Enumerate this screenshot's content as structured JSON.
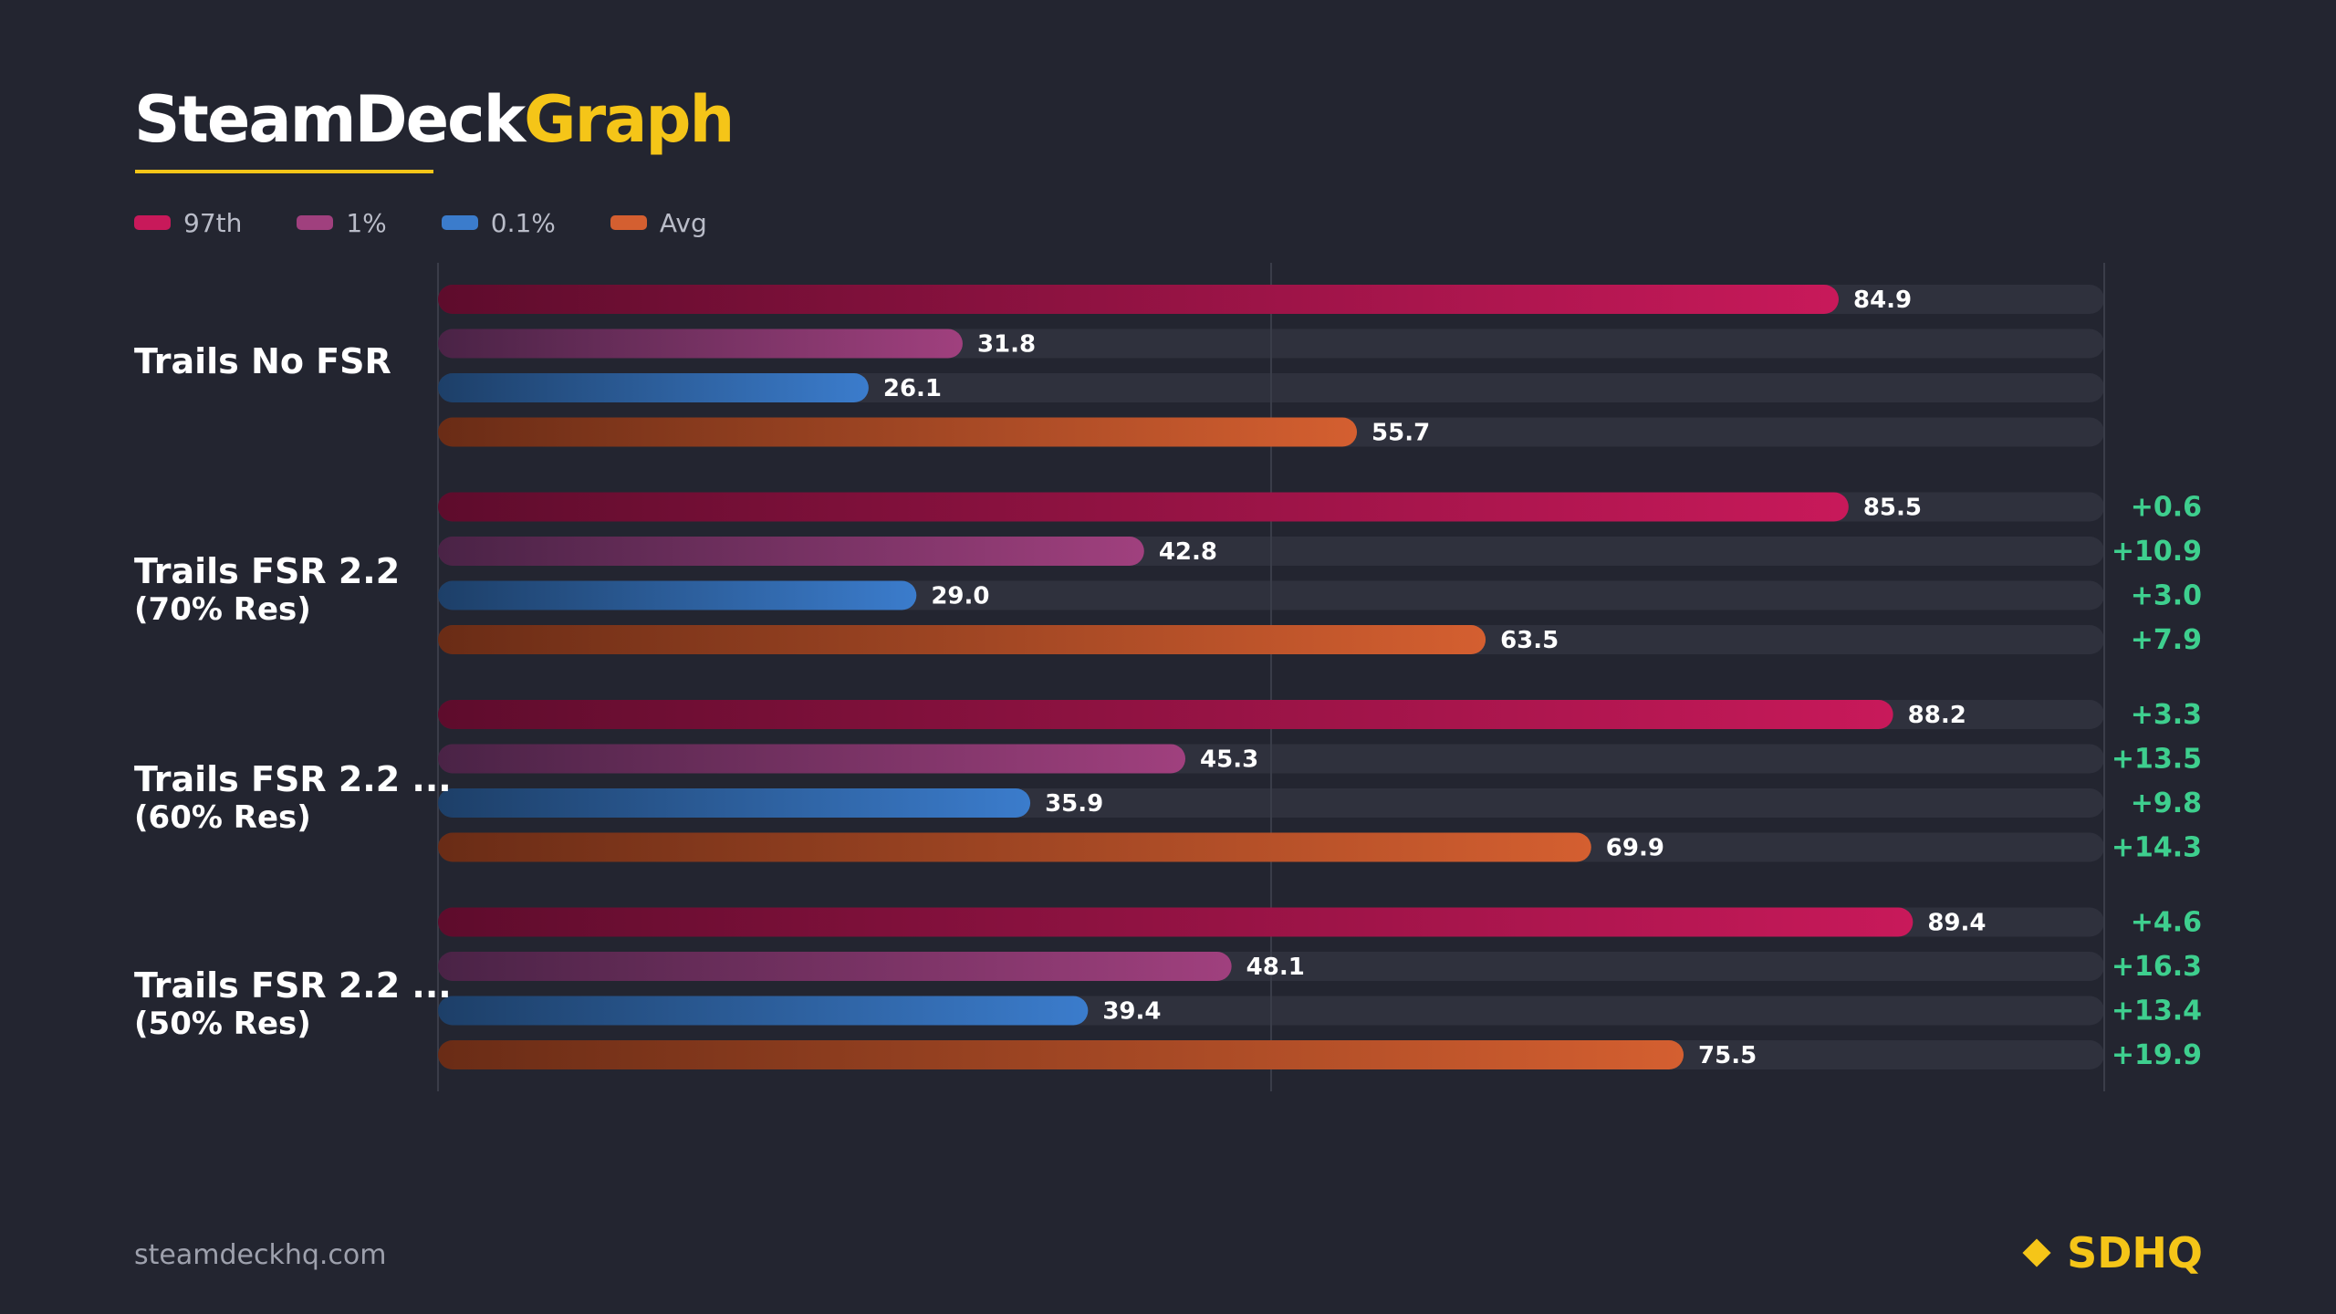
{
  "header": {
    "title_main": "SteamDeck",
    "title_accent": "Graph"
  },
  "colors": {
    "background": "#232530",
    "track": "#2f313d",
    "accent": "#f5c518",
    "delta": "#3ecf8e",
    "p97": "#c8195a",
    "p1": "#a0407e",
    "p01": "#3b7ccc",
    "avg": "#d45f30"
  },
  "legend": [
    {
      "label": "97th",
      "color": "#c8195a"
    },
    {
      "label": "1%",
      "color": "#a0407e"
    },
    {
      "label": "0.1%",
      "color": "#3b7ccc"
    },
    {
      "label": "Avg",
      "color": "#d45f30"
    }
  ],
  "chart_data": {
    "type": "bar",
    "orientation": "horizontal",
    "xlim": [
      0,
      100
    ],
    "grid": true,
    "legend_position": "top-left",
    "categories": [
      {
        "line1": "Trails No FSR",
        "line2": ""
      },
      {
        "line1": "Trails FSR 2.2",
        "line2": "(70% Res)"
      },
      {
        "line1": "Trails FSR 2.2 ...",
        "line2": "(60% Res)"
      },
      {
        "line1": "Trails FSR 2.2 ...",
        "line2": "(50% Res)"
      }
    ],
    "series": [
      {
        "name": "97th",
        "color": "#c8195a",
        "values": [
          84.9,
          85.5,
          88.2,
          89.4
        ],
        "labels": [
          "84.9",
          "85.5",
          "88.2",
          "89.4"
        ],
        "deltas": [
          "",
          "+0.6",
          "+3.3",
          "+4.6"
        ]
      },
      {
        "name": "1%",
        "color": "#a0407e",
        "values": [
          31.8,
          42.8,
          45.3,
          48.1
        ],
        "labels": [
          "31.8",
          "42.8",
          "45.3",
          "48.1"
        ],
        "deltas": [
          "",
          "+10.9",
          "+13.5",
          "+16.3"
        ]
      },
      {
        "name": "0.1%",
        "color": "#3b7ccc",
        "values": [
          26.1,
          29.0,
          35.9,
          39.4
        ],
        "labels": [
          "26.1",
          "29.0",
          "35.9",
          "39.4"
        ],
        "deltas": [
          "",
          "+3.0",
          "+9.8",
          "+13.4"
        ]
      },
      {
        "name": "Avg",
        "color": "#d45f30",
        "values": [
          55.7,
          63.5,
          69.9,
          75.5
        ],
        "labels": [
          "55.7",
          "63.5",
          "69.9",
          "75.5"
        ],
        "deltas": [
          "",
          "+7.9",
          "+14.3",
          "+19.9"
        ]
      }
    ]
  },
  "footer": {
    "url": "steamdeckhq.com",
    "brand": "SDHQ",
    "brand_icon": "diamond-icon"
  }
}
